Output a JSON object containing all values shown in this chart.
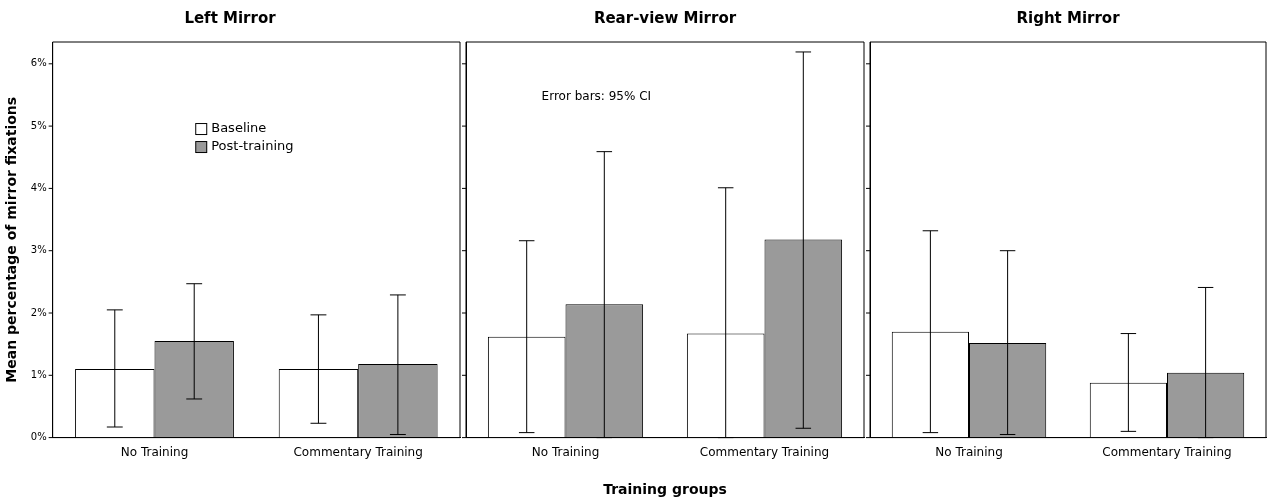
{
  "chart_data": [
    {
      "type": "bar",
      "title": "Left Mirror",
      "ylabel": "Mean percentage of mirror fixations",
      "categories": [
        "No Training",
        "Commentary Training"
      ],
      "ylim": [
        0,
        6.35
      ],
      "yticks": [
        {
          "value": 0,
          "label": "0%"
        },
        {
          "value": 1,
          "label": "1%"
        },
        {
          "value": 2,
          "label": "2%"
        },
        {
          "value": 3,
          "label": "3%"
        },
        {
          "value": 4,
          "label": "4%"
        },
        {
          "value": 5,
          "label": "5%"
        },
        {
          "value": 6,
          "label": "6%"
        }
      ],
      "grid": false,
      "legend": "top",
      "series": [
        {
          "name": "Baseline",
          "color": "#ffffff",
          "values": [
            1.1,
            1.1
          ],
          "errors": [
            [
              0.17,
              2.05
            ],
            [
              0.23,
              1.97
            ]
          ]
        },
        {
          "name": "Post-training",
          "color": "#9a9a9a",
          "values": [
            1.55,
            1.18
          ],
          "errors": [
            [
              0.62,
              2.47
            ],
            [
              0.05,
              2.29
            ]
          ]
        }
      ]
    },
    {
      "type": "bar",
      "title": "Rear-view Mirror",
      "xlabel": "Training groups",
      "annotations": [
        "Error bars: 95% CI"
      ],
      "categories": [
        "No Training",
        "Commentary Training"
      ],
      "ylim": [
        0,
        6.35
      ],
      "yticks": [
        {
          "value": 0,
          "label": null
        },
        {
          "value": 1,
          "label": null
        },
        {
          "value": 2,
          "label": null
        },
        {
          "value": 3,
          "label": null
        },
        {
          "value": 4,
          "label": null
        },
        {
          "value": 5,
          "label": null
        },
        {
          "value": 6,
          "label": null
        }
      ],
      "tick_labels": "x",
      "grid": false,
      "series": [
        {
          "color": "#ffffff",
          "values": [
            1.62,
            1.67
          ],
          "errors": [
            [
              0.08,
              3.16
            ],
            [
              0,
              4.01
            ]
          ]
        },
        {
          "color": "#9a9a9a",
          "values": [
            2.14,
            3.18
          ],
          "errors": [
            [
              0,
              4.59
            ],
            [
              0.15,
              6.19
            ]
          ]
        }
      ]
    },
    {
      "type": "bar",
      "title": "Right Mirror",
      "categories": [
        "No Training",
        "Commentary Training"
      ],
      "ylim": [
        0,
        6.35
      ],
      "yticks": [
        {
          "value": 0,
          "label": null
        },
        {
          "value": 1,
          "label": null
        },
        {
          "value": 2,
          "label": null
        },
        {
          "value": 3,
          "label": null
        },
        {
          "value": 4,
          "label": null
        },
        {
          "value": 5,
          "label": null
        },
        {
          "value": 6,
          "label": null
        }
      ],
      "tick_labels": "x",
      "grid": false,
      "series": [
        {
          "color": "#ffffff",
          "values": [
            1.7,
            0.88
          ],
          "errors": [
            [
              0.08,
              3.32
            ],
            [
              0.1,
              1.67
            ]
          ]
        },
        {
          "color": "#9a9a9a",
          "values": [
            1.52,
            1.04
          ],
          "errors": [
            [
              0.05,
              3.0
            ],
            [
              0,
              2.41
            ]
          ]
        }
      ]
    }
  ]
}
